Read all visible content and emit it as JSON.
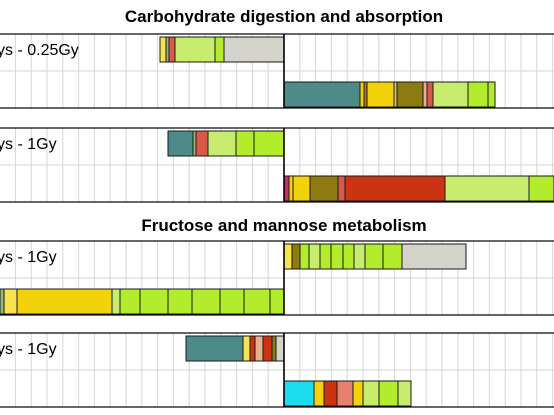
{
  "chart_data": {
    "type": "bar",
    "orientation": "horizontal-stacked-diverging",
    "grid": true,
    "sections": [
      {
        "title": "Carbohydrate digestion and absorption",
        "panels": [
          {
            "label": "ys - 0.25Gy",
            "rows": [
              {
                "direction": "left",
                "segments": [
                  {
                    "value": 60,
                    "color": "#d4d4cb"
                  },
                  {
                    "value": 9,
                    "color": "#b3ec2c"
                  },
                  {
                    "value": 40,
                    "color": "#c8ec6e"
                  },
                  {
                    "value": 6,
                    "color": "#d9584a"
                  },
                  {
                    "value": 3,
                    "color": "#8fbb7a"
                  },
                  {
                    "value": 6,
                    "color": "#f5e44f"
                  }
                ]
              },
              {
                "direction": "right",
                "segments": [
                  {
                    "value": 76,
                    "color": "#4d8b89"
                  },
                  {
                    "value": 4,
                    "color": "#f2d20b"
                  },
                  {
                    "value": 3,
                    "color": "#b37a1a"
                  },
                  {
                    "value": 27,
                    "color": "#f2d20b"
                  },
                  {
                    "value": 3,
                    "color": "#d8c86a"
                  },
                  {
                    "value": 26,
                    "color": "#8d7a10"
                  },
                  {
                    "value": 4,
                    "color": "#e8b08a"
                  },
                  {
                    "value": 6,
                    "color": "#d9584a"
                  },
                  {
                    "value": 35,
                    "color": "#c8ec6e"
                  },
                  {
                    "value": 20,
                    "color": "#b3ec2c"
                  },
                  {
                    "value": 7,
                    "color": "#b3ec2c"
                  }
                ]
              }
            ]
          },
          {
            "label": "ys - 1Gy",
            "rows": [
              {
                "direction": "left",
                "segments": [
                  {
                    "value": 30,
                    "color": "#b3ec2c"
                  },
                  {
                    "value": 18,
                    "color": "#b3ec2c"
                  },
                  {
                    "value": 28,
                    "color": "#c8ec6e"
                  },
                  {
                    "value": 12,
                    "color": "#d9584a"
                  },
                  {
                    "value": 3,
                    "color": "#8fbb7a"
                  },
                  {
                    "value": 25,
                    "color": "#4d8b89"
                  }
                ]
              },
              {
                "direction": "right",
                "segments": [
                  {
                    "value": 5,
                    "color": "#cc2a6e"
                  },
                  {
                    "value": 4,
                    "color": "#f2d20b"
                  },
                  {
                    "value": 17,
                    "color": "#f2d20b"
                  },
                  {
                    "value": 28,
                    "color": "#8d7a10"
                  },
                  {
                    "value": 7,
                    "color": "#d9584a"
                  },
                  {
                    "value": 100,
                    "color": "#cc3311"
                  },
                  {
                    "value": 84,
                    "color": "#c8ec6e"
                  },
                  {
                    "value": 25,
                    "color": "#b3ec2c"
                  }
                ]
              }
            ]
          }
        ]
      },
      {
        "title": "Fructose and mannose metabolism",
        "panels": [
          {
            "label": "ys - 1Gy",
            "rows": [
              {
                "direction": "right",
                "segments": [
                  {
                    "value": 8,
                    "color": "#f5e44f"
                  },
                  {
                    "value": 8,
                    "color": "#8d7a10"
                  },
                  {
                    "value": 9,
                    "color": "#b3ec2c"
                  },
                  {
                    "value": 11,
                    "color": "#c8ec6e"
                  },
                  {
                    "value": 11,
                    "color": "#b3ec2c"
                  },
                  {
                    "value": 12,
                    "color": "#b3ec2c"
                  },
                  {
                    "value": 11,
                    "color": "#b3ec2c"
                  },
                  {
                    "value": 11,
                    "color": "#c8ec6e"
                  },
                  {
                    "value": 18,
                    "color": "#b3ec2c"
                  },
                  {
                    "value": 19,
                    "color": "#b3ec2c"
                  },
                  {
                    "value": 64,
                    "color": "#d4d4cb"
                  }
                ]
              },
              {
                "direction": "left",
                "segments": [
                  {
                    "value": 14,
                    "color": "#b3ec2c"
                  },
                  {
                    "value": 26,
                    "color": "#b3ec2c"
                  },
                  {
                    "value": 24,
                    "color": "#b3ec2c"
                  },
                  {
                    "value": 28,
                    "color": "#b3ec2c"
                  },
                  {
                    "value": 24,
                    "color": "#b3ec2c"
                  },
                  {
                    "value": 28,
                    "color": "#b3ec2c"
                  },
                  {
                    "value": 20,
                    "color": "#b3ec2c"
                  },
                  {
                    "value": 8,
                    "color": "#c8ec6e"
                  },
                  {
                    "value": 95,
                    "color": "#f2d20b"
                  },
                  {
                    "value": 13,
                    "color": "#f5e44f"
                  },
                  {
                    "value": 4,
                    "color": "#8fbb7a"
                  },
                  {
                    "value": 9,
                    "color": "#d9584a"
                  }
                ]
              }
            ]
          },
          {
            "label": "ys - 1Gy",
            "rows": [
              {
                "direction": "left",
                "segments": [
                  {
                    "value": 8,
                    "color": "#d4d4cb"
                  },
                  {
                    "value": 4,
                    "color": "#8d7a10"
                  },
                  {
                    "value": 9,
                    "color": "#cc3311"
                  },
                  {
                    "value": 8,
                    "color": "#e8b08a"
                  },
                  {
                    "value": 5,
                    "color": "#cc3311"
                  },
                  {
                    "value": 7,
                    "color": "#f5e44f"
                  },
                  {
                    "value": 57,
                    "color": "#4d8b89"
                  }
                ]
              },
              {
                "direction": "right",
                "segments": [
                  {
                    "value": 30,
                    "color": "#1cdcf0"
                  },
                  {
                    "value": 10,
                    "color": "#f2d20b"
                  },
                  {
                    "value": 13,
                    "color": "#cc3311"
                  },
                  {
                    "value": 16,
                    "color": "#e88070"
                  },
                  {
                    "value": 10,
                    "color": "#f2d20b"
                  },
                  {
                    "value": 16,
                    "color": "#c8ec6e"
                  },
                  {
                    "value": 19,
                    "color": "#b3ec2c"
                  },
                  {
                    "value": 13,
                    "color": "#c8ec6e"
                  }
                ]
              }
            ]
          }
        ]
      }
    ]
  }
}
